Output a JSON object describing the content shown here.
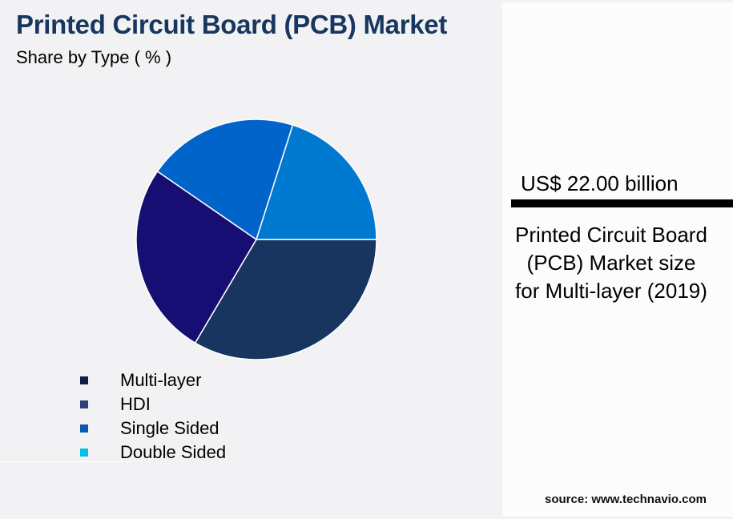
{
  "header": {
    "title": "Printed Circuit Board (PCB) Market",
    "subtitle": "Share by Type ( % )"
  },
  "legend": [
    {
      "label": "Multi-layer",
      "color": "#0d1f4a"
    },
    {
      "label": "HDI",
      "color": "#2e3f7a"
    },
    {
      "label": "Single Sided",
      "color": "#0a58b0"
    },
    {
      "label": "Double Sided",
      "color": "#00c0e4"
    }
  ],
  "kpi": {
    "value": "US$ 22.00 billion",
    "description": "Printed Circuit Board (PCB) Market size for Multi-layer (2019)"
  },
  "footer": {
    "source": "source: www.technavio.com"
  },
  "chart_data": {
    "type": "pie",
    "title": "Printed Circuit Board (PCB) Market",
    "subtitle": "Share by Type ( % )",
    "categories": [
      "Multi-layer",
      "HDI",
      "Single Sided",
      "Double Sided"
    ],
    "values": [
      33.5,
      26.1,
      20.3,
      20.1
    ],
    "slice_colors": [
      "#17355f",
      "#170e74",
      "#0064ca",
      "#0079d0"
    ],
    "legend_position": "bottom-left",
    "data_labels": false
  }
}
